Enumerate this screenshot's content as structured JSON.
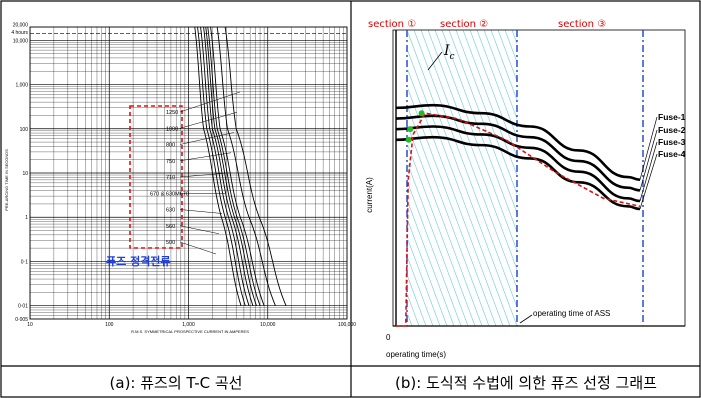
{
  "chart_data": [
    {
      "type": "line",
      "panel_caption": "(a): 퓨즈의 T-C 곡선",
      "xlabel": "R.M.S. SYMMETRICAL PROSPECTIVE CURRENT IN AMPERES",
      "ylabel": "PRE-ARCING TIME IN SECONDS",
      "x_scale": "log",
      "y_scale": "log",
      "xlim": [
        10,
        100000
      ],
      "ylim": [
        0.005,
        20000
      ],
      "x_ticks": [
        "10",
        "100",
        "1,000",
        "10,000",
        "100,000"
      ],
      "y_ticks": [
        "20,000",
        "4 hours",
        "10,000",
        "1,000",
        "100",
        "10",
        "1",
        "0·1",
        "0·01",
        "0·005"
      ],
      "four_hours_line_seconds": 14400,
      "ratings_label_list": [
        "1250",
        "1000",
        "800",
        "750",
        "710",
        "670 & 630M670",
        "630",
        "560",
        "500"
      ],
      "annotation": "퓨즈 정격전류",
      "series": [
        {
          "rating": 500,
          "points": [
            [
              1200,
              20000
            ],
            [
              1550,
              100
            ],
            [
              2600,
              1
            ],
            [
              4600,
              0.01
            ]
          ]
        },
        {
          "rating": 560,
          "points": [
            [
              1300,
              20000
            ],
            [
              1700,
              100
            ],
            [
              2900,
              1
            ],
            [
              5200,
              0.01
            ]
          ]
        },
        {
          "rating": 630,
          "points": [
            [
              1420,
              20000
            ],
            [
              1850,
              100
            ],
            [
              3200,
              1
            ],
            [
              5800,
              0.01
            ]
          ]
        },
        {
          "rating": 670,
          "points": [
            [
              1550,
              20000
            ],
            [
              2000,
              100
            ],
            [
              3500,
              1
            ],
            [
              6500,
              0.01
            ]
          ]
        },
        {
          "rating": 710,
          "points": [
            [
              1650,
              20000
            ],
            [
              2150,
              100
            ],
            [
              3800,
              1
            ],
            [
              7200,
              0.01
            ]
          ]
        },
        {
          "rating": 750,
          "points": [
            [
              1750,
              20000
            ],
            [
              2300,
              100
            ],
            [
              4100,
              1
            ],
            [
              8000,
              0.01
            ]
          ]
        },
        {
          "rating": 800,
          "points": [
            [
              1900,
              20000
            ],
            [
              2500,
              100
            ],
            [
              4500,
              1
            ],
            [
              9000,
              0.01
            ]
          ]
        },
        {
          "rating": 1000,
          "points": [
            [
              2300,
              20000
            ],
            [
              3100,
              100
            ],
            [
              5800,
              1
            ],
            [
              12500,
              0.01
            ]
          ]
        },
        {
          "rating": 1250,
          "points": [
            [
              2900,
              20000
            ],
            [
              4000,
              100
            ],
            [
              7800,
              1
            ],
            [
              17000,
              0.01
            ]
          ]
        }
      ]
    },
    {
      "type": "line",
      "panel_caption": "(b): 도식적 수법에 의한 퓨즈 선정 그래프",
      "xlabel": "operating time(s)",
      "ylabel": "current(A)",
      "origin_label": "0",
      "ic_label_base": "I",
      "ic_label_sub": "c",
      "sections": [
        "section ①",
        "section ②",
        "section ③"
      ],
      "ass_label": "operating time of ASS",
      "series": [
        {
          "name": "Fuse-1",
          "y": [
            0.82,
            0.83,
            0.8,
            0.75,
            0.66,
            0.56,
            0.55
          ]
        },
        {
          "name": "Fuse-2",
          "y": [
            0.78,
            0.79,
            0.76,
            0.71,
            0.62,
            0.52,
            0.51
          ]
        },
        {
          "name": "Fuse-3",
          "y": [
            0.74,
            0.75,
            0.72,
            0.67,
            0.58,
            0.48,
            0.47
          ]
        },
        {
          "name": "Fuse-4",
          "y": [
            0.7,
            0.71,
            0.68,
            0.63,
            0.54,
            0.45,
            0.44
          ]
        }
      ],
      "series_x": [
        0.0,
        0.15,
        0.35,
        0.55,
        0.75,
        0.95,
        1.0
      ],
      "inrush_curve": {
        "x": [
          0.0,
          0.04,
          0.05,
          0.07,
          0.12,
          0.25,
          0.45,
          0.65,
          0.85,
          1.0
        ],
        "y": [
          0.0,
          0.0,
          0.55,
          0.72,
          0.8,
          0.78,
          0.7,
          0.58,
          0.48,
          0.45
        ]
      },
      "colors": {
        "curve": "#000000",
        "inrush": "#dd1111",
        "marker": "#22bb22",
        "hatch": "#7fd0e8",
        "boundary": "#1a3fd0"
      }
    }
  ]
}
